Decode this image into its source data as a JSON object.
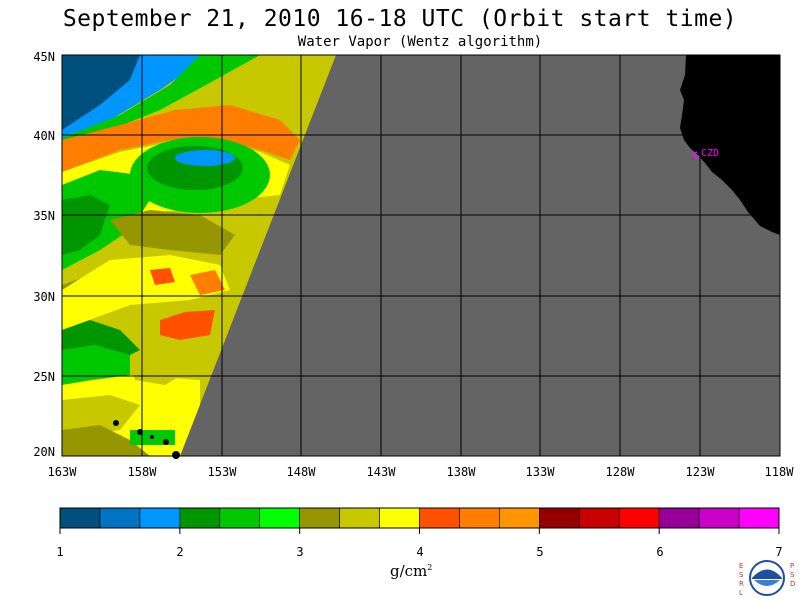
{
  "title": "September 21, 2010  16-18 UTC  (Orbit start time)",
  "subtitle": "Water Vapor (Wentz algorithm)",
  "map": {
    "lat_labels": [
      "45N",
      "40N",
      "35N",
      "30N",
      "25N",
      "20N"
    ],
    "lon_labels": [
      "163W",
      "158W",
      "153W",
      "148W",
      "143W",
      "138W",
      "133W",
      "128W",
      "123W",
      "118W"
    ],
    "station_label": "CZD",
    "colors": {
      "no_data": "#646464",
      "land": "#000000",
      "station": "#ff00ff",
      "grid": "#000000"
    }
  },
  "colorbar": {
    "colors": [
      "#00507d",
      "#0073c3",
      "#0096ff",
      "#009600",
      "#00c800",
      "#00ff00",
      "#969600",
      "#c8c800",
      "#ffff00",
      "#ff5000",
      "#ff7d00",
      "#ff9600",
      "#960000",
      "#c80000",
      "#ff0000",
      "#960096",
      "#c800c8",
      "#ff00ff"
    ],
    "tick_labels": [
      "1",
      "2",
      "3",
      "4",
      "5",
      "6",
      "7"
    ],
    "units": "g/cm",
    "units_exp": "2"
  },
  "logo": {
    "left": "ESRL",
    "right": "PSD",
    "center": "NOAA"
  }
}
